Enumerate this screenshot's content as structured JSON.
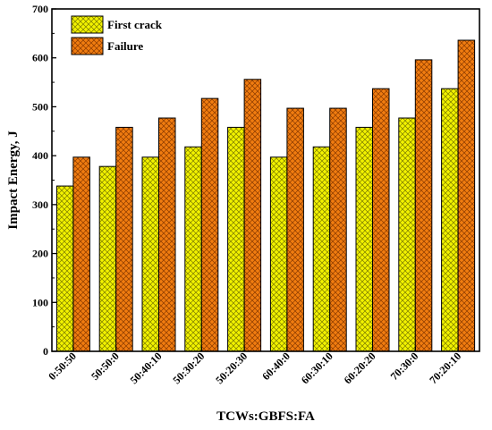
{
  "chart_data": {
    "type": "bar",
    "title": "",
    "xlabel": "TCWs:GBFS:FA",
    "ylabel": "Impact Energy, J",
    "ylim": [
      0,
      700
    ],
    "yticks": [
      0,
      100,
      200,
      300,
      400,
      500,
      600,
      700
    ],
    "grid": false,
    "legend_position": "top-left",
    "categories": [
      "0:50:50",
      "50:50:0",
      "50:40:10",
      "50:30:20",
      "50:20:30",
      "60:40:0",
      "60:30:10",
      "60:20:20",
      "70:30:0",
      "70:20:10"
    ],
    "series": [
      {
        "name": "First crack",
        "color": "#f2f200",
        "hatch_color": "#7a7a00",
        "values": [
          338,
          378,
          397,
          418,
          458,
          397,
          418,
          458,
          477,
          537
        ]
      },
      {
        "name": "Failure",
        "color": "#f07c10",
        "hatch_color": "#8a3a00",
        "values": [
          397,
          458,
          477,
          517,
          556,
          497,
          497,
          537,
          596,
          636
        ]
      }
    ]
  }
}
